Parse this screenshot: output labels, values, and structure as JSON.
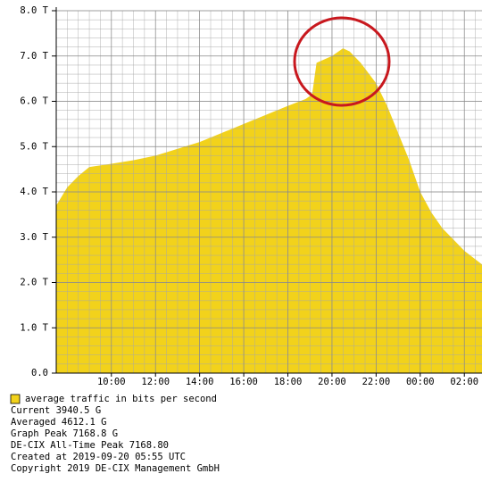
{
  "chart_data": {
    "type": "area",
    "x": [
      7.5,
      8,
      8.5,
      9,
      10,
      11,
      12,
      13,
      14,
      15,
      16,
      17,
      18,
      18.8,
      19.1,
      19.3,
      20,
      20.5,
      20.8,
      21.3,
      22,
      22.5,
      23,
      23.5,
      24,
      24.5,
      25,
      25.5,
      26,
      26.8
    ],
    "series": [
      {
        "name": "average traffic in bits per second",
        "color": "#f2d21b",
        "values": [
          3.7,
          4.1,
          4.35,
          4.55,
          4.62,
          4.7,
          4.8,
          4.95,
          5.1,
          5.3,
          5.5,
          5.7,
          5.9,
          6.05,
          6.15,
          6.85,
          7.0,
          7.17,
          7.1,
          6.85,
          6.4,
          5.9,
          5.3,
          4.7,
          4.0,
          3.55,
          3.2,
          2.95,
          2.7,
          2.4
        ]
      }
    ],
    "xlim": [
      7.5,
      26.8
    ],
    "xticks": [
      {
        "value": 10,
        "label": "10:00"
      },
      {
        "value": 12,
        "label": "12:00"
      },
      {
        "value": 14,
        "label": "14:00"
      },
      {
        "value": 16,
        "label": "16:00"
      },
      {
        "value": 18,
        "label": "18:00"
      },
      {
        "value": 20,
        "label": "20:00"
      },
      {
        "value": 22,
        "label": "22:00"
      },
      {
        "value": 24,
        "label": "00:00"
      },
      {
        "value": 26,
        "label": "02:00"
      }
    ],
    "ylim": [
      0,
      8
    ],
    "yticks": [
      {
        "value": 0,
        "label": "0.0"
      },
      {
        "value": 1,
        "label": "1.0 T"
      },
      {
        "value": 2,
        "label": "2.0 T"
      },
      {
        "value": 3,
        "label": "3.0 T"
      },
      {
        "value": 4,
        "label": "4.0 T"
      },
      {
        "value": 5,
        "label": "5.0 T"
      },
      {
        "value": 6,
        "label": "6.0 T"
      },
      {
        "value": 7,
        "label": "7.0 T"
      },
      {
        "value": 8,
        "label": "8.0 T"
      }
    ],
    "grid": true,
    "info_lines": [
      "Current 3940.5 G",
      "Averaged 4612.1 G",
      "Graph Peak 7168.8 G",
      "DE-CIX All-Time Peak 7168.80",
      "Created at 2019-09-20 05:55 UTC",
      "Copyright 2019 DE-CIX Management GmbH"
    ]
  }
}
